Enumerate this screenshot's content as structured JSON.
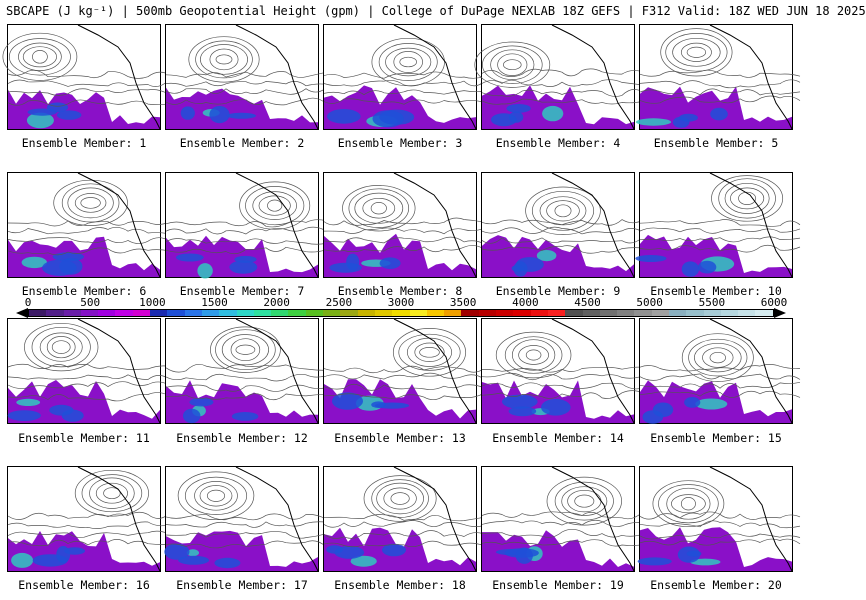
{
  "header": {
    "title": "SBCAPE (J kg⁻¹) | 500mb Geopotential Height (gpm) | College of DuPage NEXLAB 18Z GEFS | F312 Valid: 18Z WED JUN 18 2025"
  },
  "members": [
    {
      "label": "Ensemble Member: 1"
    },
    {
      "label": "Ensemble Member: 2"
    },
    {
      "label": "Ensemble Member: 3"
    },
    {
      "label": "Ensemble Member: 4"
    },
    {
      "label": "Ensemble Member: 5"
    },
    {
      "label": "Ensemble Member: 6"
    },
    {
      "label": "Ensemble Member: 7"
    },
    {
      "label": "Ensemble Member: 8"
    },
    {
      "label": "Ensemble Member: 9"
    },
    {
      "label": "Ensemble Member: 10"
    },
    {
      "label": "Ensemble Member: 11"
    },
    {
      "label": "Ensemble Member: 12"
    },
    {
      "label": "Ensemble Member: 13"
    },
    {
      "label": "Ensemble Member: 14"
    },
    {
      "label": "Ensemble Member: 15"
    },
    {
      "label": "Ensemble Member: 16"
    },
    {
      "label": "Ensemble Member: 17"
    },
    {
      "label": "Ensemble Member: 18"
    },
    {
      "label": "Ensemble Member: 19"
    },
    {
      "label": "Ensemble Member: 20"
    }
  ],
  "colorbar": {
    "ticks": [
      "0",
      "500",
      "1000",
      "1500",
      "2000",
      "2500",
      "3000",
      "3500",
      "4000",
      "4500",
      "5000",
      "5500",
      "6000"
    ],
    "colors": [
      "#3c1a66",
      "#52208a",
      "#6a1fa8",
      "#8412c6",
      "#a000e0",
      "#c000e6",
      "#d200d2",
      "#1a2ab0",
      "#1e4fd6",
      "#2a74e8",
      "#2f9be8",
      "#30bde0",
      "#2ed8c8",
      "#2ee0a0",
      "#30d870",
      "#3ed040",
      "#58c020",
      "#7ab016",
      "#9ca814",
      "#c8b400",
      "#e0c800",
      "#f0dc00",
      "#f8ec20",
      "#f8c800",
      "#f0a000",
      "#a00000",
      "#b80000",
      "#cc0000",
      "#dc0000",
      "#ec1010",
      "#f82020",
      "#505050",
      "#606060",
      "#707070",
      "#808080",
      "#909090",
      "#a0a0a0",
      "#8ab0c0",
      "#98c0cc",
      "#a8ccd6",
      "#b6d8e0",
      "#c6e2e8",
      "#d6ecf0"
    ],
    "arrow_left_color": "#000000",
    "arrow_right_color": "#000000"
  },
  "map_colors": {
    "cape_low": "#8a10c8",
    "cape_mid": "#1e50d8",
    "cape_high": "#30c8c0",
    "contour": "#555555",
    "coast": "#000000"
  }
}
